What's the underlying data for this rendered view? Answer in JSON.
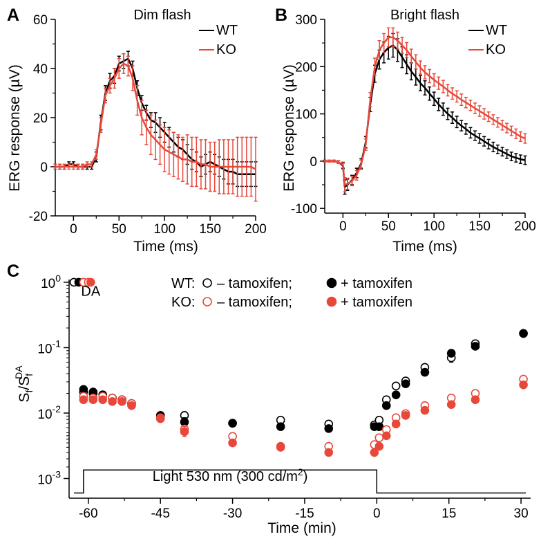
{
  "colors": {
    "wt": "#000000",
    "ko": "#e8483a"
  },
  "chart_data": [
    {
      "panel": "A",
      "type": "line",
      "title": "Dim flash",
      "xlabel": "Time (ms)",
      "ylabel": "ERG response (µV)",
      "xlim": [
        -20,
        200
      ],
      "ylim": [
        -20,
        60
      ],
      "xticks": [
        0,
        50,
        100,
        150,
        200
      ],
      "yticks": [
        -20,
        0,
        20,
        40,
        60
      ],
      "x_tick_labels": [
        "0",
        "50",
        "100",
        "150",
        "200"
      ],
      "y_tick_labels": [
        "-20",
        "0",
        "20",
        "40",
        "60"
      ],
      "legend_position": "top-right",
      "series": [
        {
          "name": "WT",
          "color": "#000000",
          "x": [
            -20,
            -15,
            -10,
            -5,
            0,
            5,
            10,
            15,
            20,
            25,
            30,
            35,
            40,
            45,
            50,
            55,
            60,
            65,
            70,
            75,
            80,
            85,
            90,
            95,
            100,
            105,
            110,
            115,
            120,
            125,
            130,
            135,
            140,
            145,
            150,
            155,
            160,
            165,
            170,
            175,
            180,
            185,
            190,
            195,
            200
          ],
          "y": [
            0,
            0,
            0,
            1,
            1,
            0,
            0,
            0,
            0,
            4,
            18,
            30,
            35,
            37,
            42,
            43,
            44,
            40,
            32,
            26,
            22,
            19,
            18,
            16,
            14,
            12,
            10,
            8,
            7,
            5,
            3,
            2,
            0,
            1,
            2,
            1,
            0,
            -1,
            -2,
            -2,
            -3,
            -3,
            -3,
            -3,
            -3
          ],
          "err": [
            1,
            1,
            1,
            1,
            1,
            1,
            1,
            1,
            1,
            2,
            3,
            3,
            3,
            3,
            3,
            3,
            3,
            3,
            3,
            3,
            3,
            3,
            4,
            4,
            4,
            4,
            4,
            4,
            4,
            4,
            4,
            4,
            4,
            4,
            4,
            4,
            4,
            4,
            5,
            5,
            5,
            5,
            5,
            5,
            5
          ]
        },
        {
          "name": "KO",
          "color": "#e8483a",
          "x": [
            -20,
            -15,
            -10,
            -5,
            0,
            5,
            10,
            15,
            20,
            25,
            30,
            35,
            40,
            45,
            50,
            55,
            60,
            65,
            70,
            75,
            80,
            85,
            90,
            95,
            100,
            105,
            110,
            115,
            120,
            125,
            130,
            135,
            140,
            145,
            150,
            155,
            160,
            165,
            170,
            175,
            180,
            185,
            190,
            195,
            200
          ],
          "y": [
            0,
            0,
            0,
            0,
            0,
            0,
            0,
            1,
            1,
            5,
            17,
            29,
            33,
            36,
            40,
            42,
            41,
            36,
            27,
            20,
            16,
            13,
            11,
            9,
            7,
            6,
            5,
            4,
            3,
            3,
            2,
            2,
            1,
            1,
            0,
            0,
            0,
            0,
            0,
            0,
            0,
            0,
            0,
            0,
            -1
          ],
          "err": [
            1,
            1,
            1,
            1,
            1,
            1,
            1,
            1,
            1,
            2,
            3,
            3,
            3,
            4,
            4,
            4,
            4,
            5,
            6,
            7,
            7,
            8,
            8,
            8,
            9,
            9,
            9,
            9,
            9,
            10,
            10,
            10,
            10,
            10,
            10,
            10,
            11,
            11,
            11,
            11,
            12,
            12,
            12,
            12,
            13
          ]
        }
      ]
    },
    {
      "panel": "B",
      "type": "line",
      "title": "Bright flash",
      "xlabel": "Time (ms)",
      "ylabel": "ERG response (µV)",
      "xlim": [
        -20,
        200
      ],
      "ylim": [
        -110,
        300
      ],
      "xticks": [
        0,
        50,
        100,
        150,
        200
      ],
      "yticks": [
        -100,
        0,
        100,
        200,
        300
      ],
      "x_tick_labels": [
        "0",
        "50",
        "100",
        "150",
        "200"
      ],
      "y_tick_labels": [
        "-100",
        "0",
        "100",
        "200",
        "300"
      ],
      "legend_position": "top-right",
      "series": [
        {
          "name": "WT",
          "color": "#000000",
          "x": [
            -20,
            -15,
            -10,
            -5,
            0,
            2,
            5,
            10,
            15,
            20,
            25,
            30,
            35,
            40,
            45,
            50,
            55,
            60,
            65,
            70,
            75,
            80,
            85,
            90,
            95,
            100,
            105,
            110,
            115,
            120,
            125,
            130,
            135,
            140,
            145,
            150,
            155,
            160,
            165,
            170,
            175,
            180,
            185,
            190,
            195,
            200
          ],
          "y": [
            0,
            0,
            0,
            -2,
            -10,
            -55,
            -50,
            -40,
            -25,
            -5,
            40,
            120,
            185,
            215,
            230,
            240,
            245,
            235,
            220,
            205,
            190,
            178,
            165,
            155,
            143,
            132,
            120,
            110,
            100,
            92,
            83,
            75,
            68,
            60,
            54,
            48,
            42,
            36,
            30,
            25,
            20,
            15,
            10,
            7,
            4,
            2
          ],
          "err": [
            2,
            2,
            2,
            3,
            6,
            15,
            12,
            10,
            10,
            10,
            12,
            15,
            18,
            20,
            22,
            24,
            25,
            24,
            22,
            20,
            18,
            17,
            16,
            15,
            14,
            14,
            13,
            13,
            12,
            12,
            12,
            11,
            11,
            11,
            10,
            10,
            10,
            10,
            10,
            9,
            9,
            9,
            9,
            9,
            9,
            9
          ]
        },
        {
          "name": "KO",
          "color": "#e8483a",
          "x": [
            -20,
            -15,
            -10,
            -5,
            0,
            2,
            5,
            10,
            15,
            20,
            25,
            30,
            35,
            40,
            45,
            50,
            55,
            60,
            65,
            70,
            75,
            80,
            85,
            90,
            95,
            100,
            105,
            110,
            115,
            120,
            125,
            130,
            135,
            140,
            145,
            150,
            155,
            160,
            165,
            170,
            175,
            180,
            185,
            190,
            195,
            200
          ],
          "y": [
            0,
            0,
            0,
            -2,
            -8,
            -50,
            -48,
            -42,
            -30,
            -8,
            35,
            130,
            200,
            235,
            250,
            262,
            262,
            255,
            245,
            235,
            222,
            210,
            198,
            188,
            180,
            172,
            165,
            158,
            150,
            143,
            137,
            130,
            124,
            118,
            112,
            106,
            100,
            94,
            88,
            82,
            76,
            70,
            64,
            58,
            52,
            48
          ],
          "err": [
            2,
            2,
            2,
            3,
            6,
            15,
            12,
            10,
            10,
            10,
            12,
            15,
            18,
            20,
            20,
            20,
            20,
            18,
            17,
            16,
            15,
            15,
            14,
            14,
            14,
            13,
            13,
            13,
            12,
            12,
            12,
            12,
            11,
            11,
            11,
            11,
            11,
            10,
            10,
            10,
            10,
            10,
            10,
            10,
            10,
            10
          ]
        }
      ]
    },
    {
      "panel": "C",
      "type": "scatter",
      "xlabel": "Time (min)",
      "ylabel": "S_f/S_f^DA",
      "ylabel_parts": {
        "main": "S",
        "sub": "f",
        "slash": "/",
        "sup": "DA"
      },
      "y_scale": "log",
      "xlim": [
        -64,
        32
      ],
      "ylim": [
        0.0005,
        1.1
      ],
      "xticks": [
        -60,
        -45,
        -30,
        -15,
        0,
        15,
        30
      ],
      "x_tick_labels": [
        "-60",
        "-45",
        "-30",
        "-15",
        "0",
        "15",
        "30"
      ],
      "yticks": [
        0.001,
        0.01,
        0.1,
        1
      ],
      "y_tick_labels": [
        {
          "base": "10",
          "exp": "-3"
        },
        {
          "base": "10",
          "exp": "-2"
        },
        {
          "base": "10",
          "exp": "-1"
        },
        {
          "base": "10",
          "exp": "0"
        }
      ],
      "annotation": "DA",
      "stimulus_label": {
        "text": "Light 530 nm (300 cd/m",
        "sup": "2",
        "tail": ")"
      },
      "stimulus_trace": {
        "x": [
          -63,
          -61,
          -61,
          0,
          0,
          31
        ],
        "y": [
          0.0006,
          0.0006,
          0.00135,
          0.00135,
          0.0006,
          0.0006
        ]
      },
      "legend_rows": [
        {
          "prefix": "WT:",
          "item1": "– tamoxifen;",
          "item2": "+ tamoxifen"
        },
        {
          "prefix": "KO:",
          "item1": "– tamoxifen;",
          "item2": "+ tamoxifen"
        }
      ],
      "legend_position": "top-center",
      "series": [
        {
          "name": "WT – tamoxifen",
          "color": "#000000",
          "filled": false,
          "x": [
            -63,
            -61,
            -59,
            -57,
            -55,
            -53,
            -51,
            -45,
            -40,
            -30,
            -20,
            -10,
            -0.5,
            0.5,
            2,
            4,
            6,
            10,
            15.5,
            20.5,
            30.5
          ],
          "y": [
            1,
            0.021,
            0.02,
            0.019,
            0.017,
            0.016,
            0.014,
            0.0092,
            0.0092,
            0.007,
            0.0078,
            0.0068,
            0.0066,
            0.0078,
            0.016,
            0.026,
            0.031,
            0.05,
            0.07,
            0.115,
            0.165
          ],
          "yerr_hi": [
            1,
            0.022,
            0.021,
            0.02,
            0.018,
            0.017,
            0.015,
            0.0098,
            0.0105,
            0.0073,
            0.0086,
            0.0072,
            0.0068,
            0.0083,
            0.017,
            0.028,
            0.033,
            0.055,
            0.08,
            0.12,
            0.17
          ],
          "yerr_lo": [
            1,
            0.02,
            0.019,
            0.018,
            0.016,
            0.015,
            0.013,
            0.0087,
            0.0082,
            0.0067,
            0.007,
            0.0064,
            0.0062,
            0.0073,
            0.015,
            0.024,
            0.029,
            0.046,
            0.06,
            0.11,
            0.16
          ]
        },
        {
          "name": "WT + tamoxifen",
          "color": "#000000",
          "filled": true,
          "x": [
            -62,
            -61,
            -59,
            -57,
            -55,
            -53,
            -51,
            -45,
            -40,
            -30,
            -20,
            -10,
            -0.5,
            0.5,
            2,
            4,
            6,
            10,
            15.5,
            20.5,
            30.5
          ],
          "y": [
            1,
            0.023,
            0.021,
            0.019,
            0.017,
            0.016,
            0.014,
            0.0092,
            0.0073,
            0.007,
            0.0062,
            0.0058,
            0.0062,
            0.0062,
            0.013,
            0.019,
            0.028,
            0.042,
            0.082,
            0.105,
            0.165
          ],
          "yerr_hi": [
            1,
            0.024,
            0.022,
            0.02,
            0.018,
            0.017,
            0.015,
            0.0098,
            0.0085,
            0.0073,
            0.0068,
            0.0063,
            0.0066,
            0.0066,
            0.014,
            0.02,
            0.03,
            0.046,
            0.09,
            0.11,
            0.17
          ],
          "yerr_lo": [
            1,
            0.022,
            0.02,
            0.018,
            0.016,
            0.015,
            0.013,
            0.0087,
            0.0063,
            0.0067,
            0.0057,
            0.0053,
            0.0058,
            0.0058,
            0.012,
            0.018,
            0.026,
            0.038,
            0.074,
            0.1,
            0.16
          ]
        },
        {
          "name": "KO – tamoxifen",
          "color": "#e8483a",
          "filled": false,
          "x": [
            -61,
            -60,
            -61,
            -59,
            -57,
            -55,
            -53,
            -51,
            -45,
            -40,
            -30,
            -20,
            -10,
            -0.5,
            0.5,
            2,
            4,
            6,
            10,
            15.5,
            20.5,
            30.5
          ],
          "y": [
            1,
            1,
            0.018,
            0.017,
            0.018,
            0.017,
            0.016,
            0.014,
            0.0085,
            0.0057,
            0.0044,
            0.0031,
            0.0031,
            0.0033,
            0.0042,
            0.0056,
            0.0085,
            0.0098,
            0.013,
            0.017,
            0.02,
            0.033
          ],
          "yerr_hi": [
            1,
            1,
            0.019,
            0.018,
            0.019,
            0.018,
            0.017,
            0.015,
            0.009,
            0.0065,
            0.0047,
            0.0033,
            0.0033,
            0.0035,
            0.0045,
            0.006,
            0.009,
            0.0103,
            0.0137,
            0.0178,
            0.021,
            0.035
          ],
          "yerr_lo": [
            1,
            1,
            0.017,
            0.016,
            0.017,
            0.016,
            0.015,
            0.013,
            0.008,
            0.005,
            0.0041,
            0.0029,
            0.0029,
            0.0031,
            0.0039,
            0.0052,
            0.008,
            0.0093,
            0.0123,
            0.016,
            0.019,
            0.031
          ]
        },
        {
          "name": "KO + tamoxifen",
          "color": "#e8483a",
          "filled": true,
          "x": [
            -59.5,
            -61,
            -59,
            -57,
            -55,
            -53,
            -51,
            -45,
            -40,
            -30,
            -20,
            -10,
            -0.5,
            0.5,
            2,
            4,
            6,
            10,
            15.5,
            20.5,
            30.5
          ],
          "y": [
            1,
            0.016,
            0.016,
            0.016,
            0.015,
            0.015,
            0.013,
            0.0082,
            0.0052,
            0.0035,
            0.003,
            0.0025,
            0.0025,
            0.0031,
            0.0045,
            0.0068,
            0.0092,
            0.011,
            0.0135,
            0.016,
            0.027
          ],
          "yerr_hi": [
            1,
            0.017,
            0.017,
            0.017,
            0.016,
            0.016,
            0.014,
            0.0088,
            0.0062,
            0.0038,
            0.0032,
            0.0027,
            0.0027,
            0.0034,
            0.0048,
            0.0072,
            0.0097,
            0.0116,
            0.0142,
            0.0168,
            0.029
          ],
          "yerr_lo": [
            1,
            0.015,
            0.015,
            0.015,
            0.014,
            0.014,
            0.012,
            0.0076,
            0.0044,
            0.0032,
            0.0028,
            0.0023,
            0.0023,
            0.0028,
            0.0042,
            0.0064,
            0.0087,
            0.0104,
            0.0128,
            0.0152,
            0.025
          ]
        }
      ]
    }
  ]
}
